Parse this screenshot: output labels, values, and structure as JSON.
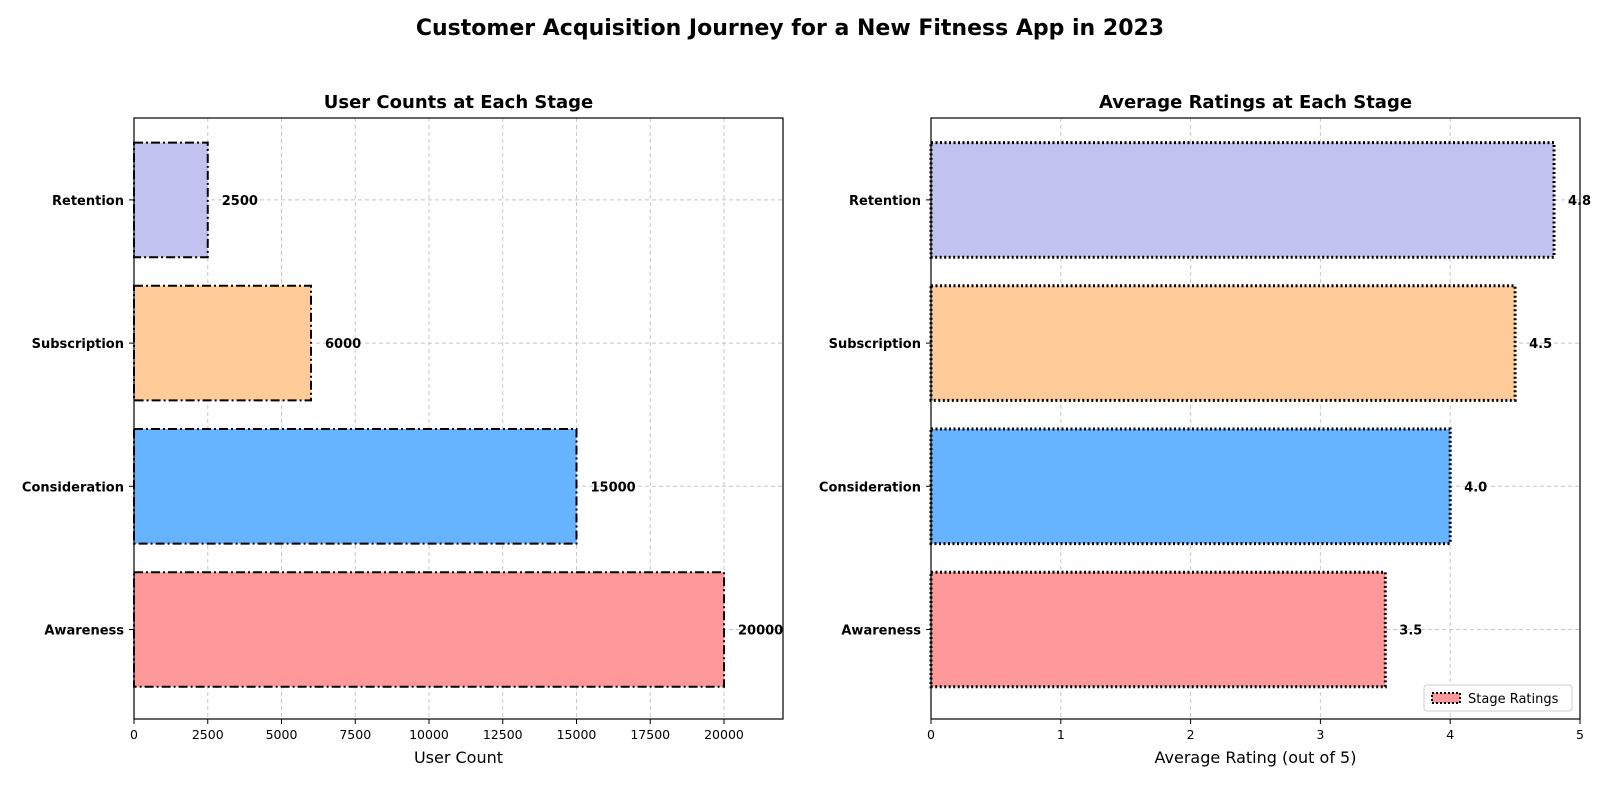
{
  "figure": {
    "title": "Customer Acquisition Journey for a New Fitness App in 2023"
  },
  "colors": {
    "Awareness": "#ff9999",
    "Consideration": "#66b3ff",
    "Subscription": "#ffcc99",
    "Retention": "#c2c2f0"
  },
  "chart_data": [
    {
      "type": "bar",
      "orientation": "horizontal",
      "title": "User Counts at Each Stage",
      "xlabel": "User Count",
      "ylabel": "",
      "categories": [
        "Awareness",
        "Consideration",
        "Subscription",
        "Retention"
      ],
      "values": [
        20000,
        15000,
        6000,
        2500
      ],
      "value_labels": [
        "20000",
        "15000",
        "6000",
        "2500"
      ],
      "xlim": [
        0,
        22000
      ],
      "xticks": [
        0,
        2500,
        5000,
        7500,
        10000,
        12500,
        15000,
        17500,
        20000
      ],
      "xtick_labels": [
        "0",
        "2500",
        "5000",
        "7500",
        "10000",
        "12500",
        "15000",
        "17500",
        "20000"
      ],
      "grid": true,
      "edge_style": "dashdot"
    },
    {
      "type": "bar",
      "orientation": "horizontal",
      "title": "Average Ratings at Each Stage",
      "xlabel": "Average Rating (out of 5)",
      "ylabel": "",
      "categories": [
        "Awareness",
        "Consideration",
        "Subscription",
        "Retention"
      ],
      "values": [
        3.5,
        4.0,
        4.5,
        4.8
      ],
      "value_labels": [
        "3.5",
        "4.0",
        "4.5",
        "4.8"
      ],
      "xlim": [
        0,
        5
      ],
      "xticks": [
        0,
        1,
        2,
        3,
        4,
        5
      ],
      "xtick_labels": [
        "0",
        "1",
        "2",
        "3",
        "4",
        "5"
      ],
      "grid": true,
      "edge_style": "dotted",
      "legend": {
        "entries": [
          "Stage Ratings"
        ],
        "placement": "lower-right"
      }
    }
  ]
}
